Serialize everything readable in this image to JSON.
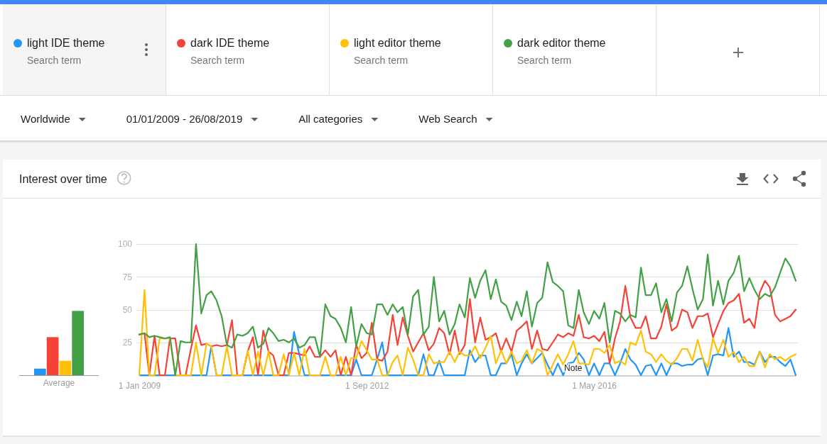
{
  "chart_data": [
    {
      "type": "bar",
      "title": "Interest over time",
      "xlabel": "Average",
      "categories": [
        null,
        null,
        null,
        null
      ],
      "values": [
        5,
        29,
        11,
        49
      ],
      "colors": [
        "#2196f3",
        "#f44336",
        "#ffc107",
        "#43a047"
      ],
      "ylim": [
        0,
        100
      ],
      "tick_labels": false
    },
    {
      "type": "line",
      "legend": "top",
      "grid": "y",
      "x": [
        "2009-01",
        "2009-02",
        "2009-03",
        "2009-04",
        "2009-05",
        "2009-06",
        "2009-07",
        "2009-08",
        "2009-09",
        "2009-10",
        "2009-11",
        "2009-12",
        "2010-01",
        "2010-02",
        "2010-03",
        "2010-04",
        "2010-05",
        "2010-06",
        "2010-07",
        "2010-08",
        "2010-09",
        "2010-10",
        "2010-11",
        "2010-12",
        "2011-01",
        "2011-02",
        "2011-03",
        "2011-04",
        "2011-05",
        "2011-06",
        "2011-07",
        "2011-08",
        "2011-09",
        "2011-10",
        "2011-11",
        "2011-12",
        "2012-01",
        "2012-02",
        "2012-03",
        "2012-04",
        "2012-05",
        "2012-06",
        "2012-07",
        "2012-08",
        "2012-09",
        "2012-10",
        "2012-11",
        "2012-12",
        "2013-01",
        "2013-02",
        "2013-03",
        "2013-04",
        "2013-05",
        "2013-06",
        "2013-07",
        "2013-08",
        "2013-09",
        "2013-10",
        "2013-11",
        "2013-12",
        "2014-01",
        "2014-02",
        "2014-03",
        "2014-04",
        "2014-05",
        "2014-06",
        "2014-07",
        "2014-08",
        "2014-09",
        "2014-10",
        "2014-11",
        "2014-12",
        "2015-01",
        "2015-02",
        "2015-03",
        "2015-04",
        "2015-05",
        "2015-06",
        "2015-07",
        "2015-08",
        "2015-09",
        "2015-10",
        "2015-11",
        "2015-12",
        "2016-01",
        "2016-02",
        "2016-03",
        "2016-04",
        "2016-05",
        "2016-06",
        "2016-07",
        "2016-08",
        "2016-09",
        "2016-10",
        "2016-11",
        "2016-12",
        "2017-01",
        "2017-02",
        "2017-03",
        "2017-04",
        "2017-05",
        "2017-06",
        "2017-07",
        "2017-08",
        "2017-09",
        "2017-10",
        "2017-11",
        "2017-12",
        "2018-01",
        "2018-02",
        "2018-03",
        "2018-04",
        "2018-05",
        "2018-06",
        "2018-07",
        "2018-08",
        "2018-09",
        "2018-10",
        "2018-11",
        "2018-12",
        "2019-01",
        "2019-02",
        "2019-03",
        "2019-04",
        "2019-05",
        "2019-06",
        "2019-07",
        "2019-08"
      ],
      "xlim": [
        "2009-01",
        "2019-08"
      ],
      "xticks": [
        {
          "value": "2009-01",
          "label": "1 Jan 2009"
        },
        {
          "value": "2012-09",
          "label": "1 Sep 2012"
        },
        {
          "value": "2016-05",
          "label": "1 May 2016"
        }
      ],
      "ylim": [
        0,
        100
      ],
      "yticks": [
        25,
        50,
        75,
        100
      ],
      "series": [
        {
          "name": "light IDE theme",
          "color": "#2196f3",
          "values": [
            0,
            0,
            0,
            0,
            0,
            0,
            0,
            0,
            0,
            0,
            0,
            0,
            0,
            0,
            22,
            0,
            0,
            0,
            0,
            0,
            0,
            0,
            0,
            0,
            0,
            0,
            0,
            0,
            0,
            0,
            33,
            16,
            0,
            0,
            0,
            0,
            0,
            0,
            0,
            0,
            0,
            0,
            12,
            0,
            0,
            0,
            12,
            25,
            0,
            0,
            0,
            0,
            0,
            0,
            0,
            16,
            0,
            0,
            11,
            0,
            0,
            0,
            0,
            0,
            19,
            10,
            15,
            15,
            0,
            0,
            9,
            9,
            16,
            0,
            9,
            16,
            9,
            13,
            17,
            8,
            0,
            9,
            0,
            9,
            10,
            17,
            12,
            0,
            9,
            0,
            9,
            9,
            0,
            9,
            20,
            12,
            8,
            0,
            7,
            8,
            0,
            9,
            0,
            9,
            9,
            7,
            8,
            8,
            12,
            13,
            0,
            15,
            16,
            15,
            36,
            14,
            18,
            10,
            10,
            8,
            18,
            10,
            14,
            14,
            10,
            7,
            12,
            0
          ]
        },
        {
          "name": "dark IDE theme",
          "color": "#f44336",
          "values": [
            31,
            32,
            0,
            30,
            0,
            0,
            28,
            28,
            0,
            0,
            20,
            38,
            23,
            24,
            22,
            23,
            22,
            23,
            42,
            0,
            0,
            18,
            29,
            0,
            34,
            18,
            15,
            0,
            0,
            17,
            17,
            16,
            15,
            22,
            14,
            14,
            19,
            14,
            19,
            0,
            14,
            0,
            23,
            13,
            17,
            40,
            12,
            11,
            18,
            46,
            23,
            44,
            30,
            18,
            25,
            32,
            19,
            24,
            36,
            32,
            16,
            34,
            16,
            23,
            58,
            25,
            44,
            27,
            29,
            32,
            18,
            28,
            18,
            34,
            37,
            41,
            20,
            34,
            20,
            19,
            25,
            31,
            29,
            32,
            30,
            46,
            29,
            28,
            30,
            26,
            33,
            9,
            28,
            41,
            68,
            44,
            36,
            36,
            45,
            28,
            28,
            37,
            54,
            34,
            37,
            50,
            48,
            36,
            45,
            45,
            47,
            29,
            39,
            49,
            55,
            57,
            62,
            40,
            43,
            36,
            63,
            72,
            67,
            46,
            41,
            43,
            45,
            50
          ]
        },
        {
          "name": "light editor theme",
          "color": "#ffc107",
          "values": [
            0,
            65,
            0,
            0,
            28,
            28,
            28,
            0,
            0,
            0,
            0,
            25,
            0,
            24,
            22,
            0,
            0,
            22,
            0,
            0,
            0,
            19,
            0,
            18,
            0,
            18,
            0,
            0,
            16,
            0,
            17,
            0,
            20,
            0,
            0,
            0,
            14,
            0,
            0,
            14,
            0,
            13,
            13,
            26,
            19,
            12,
            12,
            0,
            0,
            10,
            15,
            0,
            21,
            12,
            0,
            0,
            16,
            9,
            10,
            10,
            18,
            10,
            18,
            15,
            15,
            22,
            13,
            21,
            30,
            9,
            19,
            9,
            18,
            9,
            11,
            19,
            9,
            20,
            18,
            0,
            8,
            16,
            8,
            16,
            26,
            9,
            9,
            8,
            20,
            20,
            17,
            23,
            9,
            11,
            8,
            25,
            23,
            34,
            18,
            16,
            10,
            16,
            11,
            8,
            13,
            20,
            20,
            11,
            27,
            12,
            6,
            28,
            17,
            27,
            14,
            18,
            10,
            14,
            7,
            7,
            18,
            6,
            16,
            12,
            14,
            11,
            14,
            16
          ]
        },
        {
          "name": "dark editor theme",
          "color": "#43a047",
          "values": [
            31,
            32,
            29,
            30,
            29,
            28,
            29,
            0,
            26,
            25,
            25,
            100,
            47,
            61,
            64,
            57,
            45,
            23,
            21,
            31,
            30,
            32,
            37,
            21,
            24,
            36,
            32,
            26,
            27,
            25,
            28,
            21,
            23,
            29,
            29,
            14,
            54,
            45,
            43,
            36,
            25,
            52,
            22,
            39,
            32,
            31,
            54,
            54,
            46,
            54,
            48,
            52,
            31,
            60,
            65,
            31,
            37,
            75,
            41,
            49,
            31,
            39,
            54,
            44,
            74,
            59,
            72,
            80,
            58,
            73,
            56,
            53,
            42,
            56,
            45,
            64,
            37,
            55,
            59,
            86,
            71,
            68,
            64,
            38,
            36,
            65,
            48,
            39,
            49,
            43,
            55,
            25,
            49,
            47,
            41,
            46,
            44,
            82,
            61,
            61,
            70,
            48,
            58,
            41,
            63,
            68,
            83,
            66,
            50,
            58,
            92,
            53,
            72,
            54,
            72,
            78,
            91,
            64,
            74,
            65,
            58,
            62,
            60,
            67,
            78,
            89,
            83,
            72
          ]
        }
      ],
      "annotations": [
        "Search term",
        "Search term",
        "Search term",
        "Search term",
        "Worldwide",
        "01/01/2009 - 26/08/2019",
        "All categories",
        "Web Search",
        "Note"
      ]
    }
  ]
}
